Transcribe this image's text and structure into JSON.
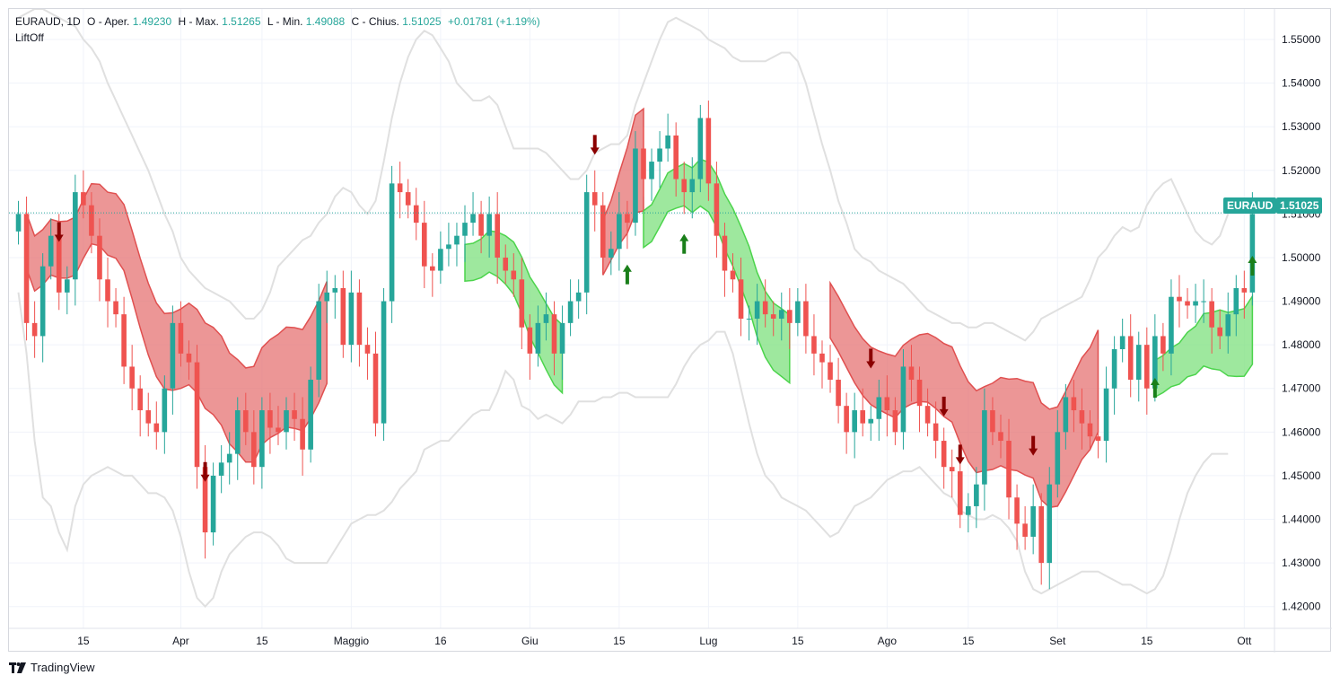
{
  "legend": {
    "symbol": "EURAUD",
    "timeframe": "1D",
    "open_label": "O - Aper.",
    "open_value": "1.49230",
    "high_label": "H - Max.",
    "high_value": "1.51265",
    "low_label": "L - Min.",
    "low_value": "1.49088",
    "close_label": "C - Chius.",
    "close_value": "1.51025",
    "change": "+0.01781 (+1.19%)",
    "indicator_name": "LiftOff"
  },
  "price_tag": {
    "symbol": "EURAUD",
    "price": "1.51025"
  },
  "brand": "TradingView",
  "colors": {
    "up": "#26a69a",
    "down": "#ef5350",
    "bear_cloud": "#e57373",
    "bull_cloud": "#7ee07e",
    "band": "#e0e0e0",
    "arrow_down": "#8b0000",
    "arrow_up": "#1a7f1a"
  },
  "chart_data": {
    "type": "candlestick",
    "ylim": [
      1.415,
      1.557
    ],
    "y_ticks": [
      "1.42000",
      "1.43000",
      "1.44000",
      "1.45000",
      "1.46000",
      "1.47000",
      "1.48000",
      "1.49000",
      "1.50000",
      "1.51000",
      "1.52000",
      "1.53000",
      "1.54000",
      "1.55000"
    ],
    "x_tick_labels": [
      {
        "label": "15",
        "index": 8
      },
      {
        "label": "Apr",
        "index": 20
      },
      {
        "label": "15",
        "index": 30
      },
      {
        "label": "Maggio",
        "index": 41
      },
      {
        "label": "16",
        "index": 52
      },
      {
        "label": "Giu",
        "index": 63
      },
      {
        "label": "15",
        "index": 74
      },
      {
        "label": "Lug",
        "index": 85
      },
      {
        "label": "15",
        "index": 96
      },
      {
        "label": "Ago",
        "index": 107
      },
      {
        "label": "15",
        "index": 117
      },
      {
        "label": "Set",
        "index": 128
      },
      {
        "label": "15",
        "index": 139
      },
      {
        "label": "Ott",
        "index": 151
      }
    ],
    "last_price": 1.51025,
    "closes": [
      1.51,
      1.485,
      1.482,
      1.498,
      1.505,
      1.492,
      1.495,
      1.515,
      1.512,
      1.505,
      1.495,
      1.49,
      1.487,
      1.475,
      1.47,
      1.465,
      1.462,
      1.46,
      1.47,
      1.485,
      1.478,
      1.476,
      1.452,
      1.437,
      1.45,
      1.453,
      1.455,
      1.465,
      1.46,
      1.452,
      1.465,
      1.461,
      1.46,
      1.465,
      1.463,
      1.456,
      1.472,
      1.49,
      1.492,
      1.493,
      1.48,
      1.492,
      1.48,
      1.478,
      1.462,
      1.49,
      1.517,
      1.515,
      1.512,
      1.508,
      1.498,
      1.497,
      1.502,
      1.503,
      1.505,
      1.508,
      1.51,
      1.505,
      1.51,
      1.5,
      1.497,
      1.495,
      1.484,
      1.478,
      1.485,
      1.487,
      1.478,
      1.485,
      1.49,
      1.492,
      1.515,
      1.512,
      1.5,
      1.502,
      1.51,
      1.508,
      1.525,
      1.518,
      1.522,
      1.525,
      1.528,
      1.518,
      1.515,
      1.518,
      1.532,
      1.517,
      1.505,
      1.497,
      1.495,
      1.486,
      1.486,
      1.49,
      1.487,
      1.486,
      1.488,
      1.485,
      1.49,
      1.482,
      1.478,
      1.476,
      1.472,
      1.466,
      1.46,
      1.465,
      1.462,
      1.463,
      1.468,
      1.465,
      1.46,
      1.475,
      1.472,
      1.466,
      1.462,
      1.458,
      1.452,
      1.451,
      1.441,
      1.443,
      1.448,
      1.465,
      1.46,
      1.458,
      1.445,
      1.439,
      1.436,
      1.443,
      1.43,
      1.448,
      1.46,
      1.468,
      1.465,
      1.462,
      1.459,
      1.458,
      1.47,
      1.479,
      1.482,
      1.472,
      1.48,
      1.47,
      1.482,
      1.478,
      1.491,
      1.49,
      1.489,
      1.49,
      1.49,
      1.484,
      1.482,
      1.487,
      1.493,
      1.492,
      1.51
    ],
    "bands_upper": [
      1.555,
      1.556,
      1.557,
      1.557,
      1.556,
      1.555,
      1.554,
      1.553,
      1.55,
      1.548,
      1.545,
      1.54,
      1.536,
      1.532,
      1.528,
      1.524,
      1.52,
      1.515,
      1.51,
      1.506,
      1.5,
      1.497,
      1.495,
      1.493,
      1.492,
      1.491,
      1.49,
      1.488,
      1.486,
      1.486,
      1.488,
      1.492,
      1.498,
      1.5,
      1.502,
      1.504,
      1.505,
      1.508,
      1.51,
      1.514,
      1.516,
      1.515,
      1.512,
      1.51,
      1.513,
      1.522,
      1.532,
      1.54,
      1.546,
      1.55,
      1.552,
      1.551,
      1.548,
      1.545,
      1.54,
      1.538,
      1.536,
      1.536,
      1.537,
      1.535,
      1.53,
      1.525,
      1.525,
      1.525,
      1.525,
      1.524,
      1.522,
      1.52,
      1.518,
      1.518,
      1.52,
      1.524,
      1.525,
      1.526,
      1.526,
      1.528,
      1.535,
      1.54,
      1.545,
      1.55,
      1.554,
      1.555,
      1.554,
      1.553,
      1.552,
      1.55,
      1.549,
      1.548,
      1.546,
      1.545,
      1.545,
      1.545,
      1.545,
      1.546,
      1.547,
      1.547,
      1.545,
      1.54,
      1.533,
      1.526,
      1.52,
      1.513,
      1.508,
      1.502,
      1.5,
      1.499,
      1.497,
      1.496,
      1.495,
      1.494,
      1.492,
      1.49,
      1.488,
      1.487,
      1.486,
      1.485,
      1.485,
      1.484,
      1.484,
      1.485,
      1.485,
      1.484,
      1.483,
      1.482,
      1.481,
      1.483,
      1.486,
      1.487,
      1.488,
      1.489,
      1.49,
      1.491,
      1.495,
      1.5,
      1.502,
      1.505,
      1.507,
      1.506,
      1.507,
      1.512,
      1.515,
      1.517,
      1.518,
      1.514,
      1.51,
      1.506,
      1.504,
      1.503,
      1.505,
      1.51
    ],
    "bands_lower": [
      1.492,
      1.478,
      1.458,
      1.445,
      1.443,
      1.437,
      1.433,
      1.443,
      1.448,
      1.45,
      1.451,
      1.452,
      1.451,
      1.45,
      1.45,
      1.448,
      1.446,
      1.446,
      1.445,
      1.442,
      1.436,
      1.428,
      1.422,
      1.42,
      1.422,
      1.428,
      1.432,
      1.434,
      1.436,
      1.437,
      1.437,
      1.436,
      1.434,
      1.431,
      1.43,
      1.43,
      1.43,
      1.43,
      1.43,
      1.433,
      1.436,
      1.439,
      1.44,
      1.441,
      1.441,
      1.442,
      1.444,
      1.447,
      1.449,
      1.451,
      1.456,
      1.457,
      1.458,
      1.458,
      1.46,
      1.462,
      1.464,
      1.465,
      1.465,
      1.469,
      1.474,
      1.472,
      1.466,
      1.465,
      1.463,
      1.464,
      1.463,
      1.462,
      1.464,
      1.467,
      1.467,
      1.467,
      1.468,
      1.468,
      1.469,
      1.469,
      1.468,
      1.468,
      1.468,
      1.468,
      1.468,
      1.471,
      1.475,
      1.478,
      1.48,
      1.481,
      1.483,
      1.483,
      1.478,
      1.47,
      1.462,
      1.455,
      1.45,
      1.448,
      1.445,
      1.444,
      1.443,
      1.442,
      1.44,
      1.438,
      1.436,
      1.437,
      1.44,
      1.443,
      1.444,
      1.445,
      1.447,
      1.449,
      1.45,
      1.451,
      1.451,
      1.452,
      1.45,
      1.448,
      1.446,
      1.445,
      1.442,
      1.441,
      1.44,
      1.44,
      1.441,
      1.44,
      1.438,
      1.435,
      1.428,
      1.424,
      1.423,
      1.424,
      1.425,
      1.426,
      1.427,
      1.428,
      1.428,
      1.428,
      1.427,
      1.426,
      1.425,
      1.425,
      1.424,
      1.423,
      1.424,
      1.427,
      1.433,
      1.44,
      1.446,
      1.45,
      1.453,
      1.455,
      1.455,
      1.455
    ],
    "bear_segments": [
      {
        "start": 1,
        "end": 38
      },
      {
        "start": 100,
        "end": 133
      },
      {
        "start": 72,
        "end": 77
      }
    ],
    "bull_segments": [
      {
        "start": 55,
        "end": 67
      },
      {
        "start": 77,
        "end": 95
      },
      {
        "start": 140,
        "end": 152
      }
    ],
    "down_arrows": [
      5,
      23,
      71,
      105,
      114,
      116,
      125
    ],
    "up_arrows": [
      75,
      82,
      140,
      152
    ]
  }
}
